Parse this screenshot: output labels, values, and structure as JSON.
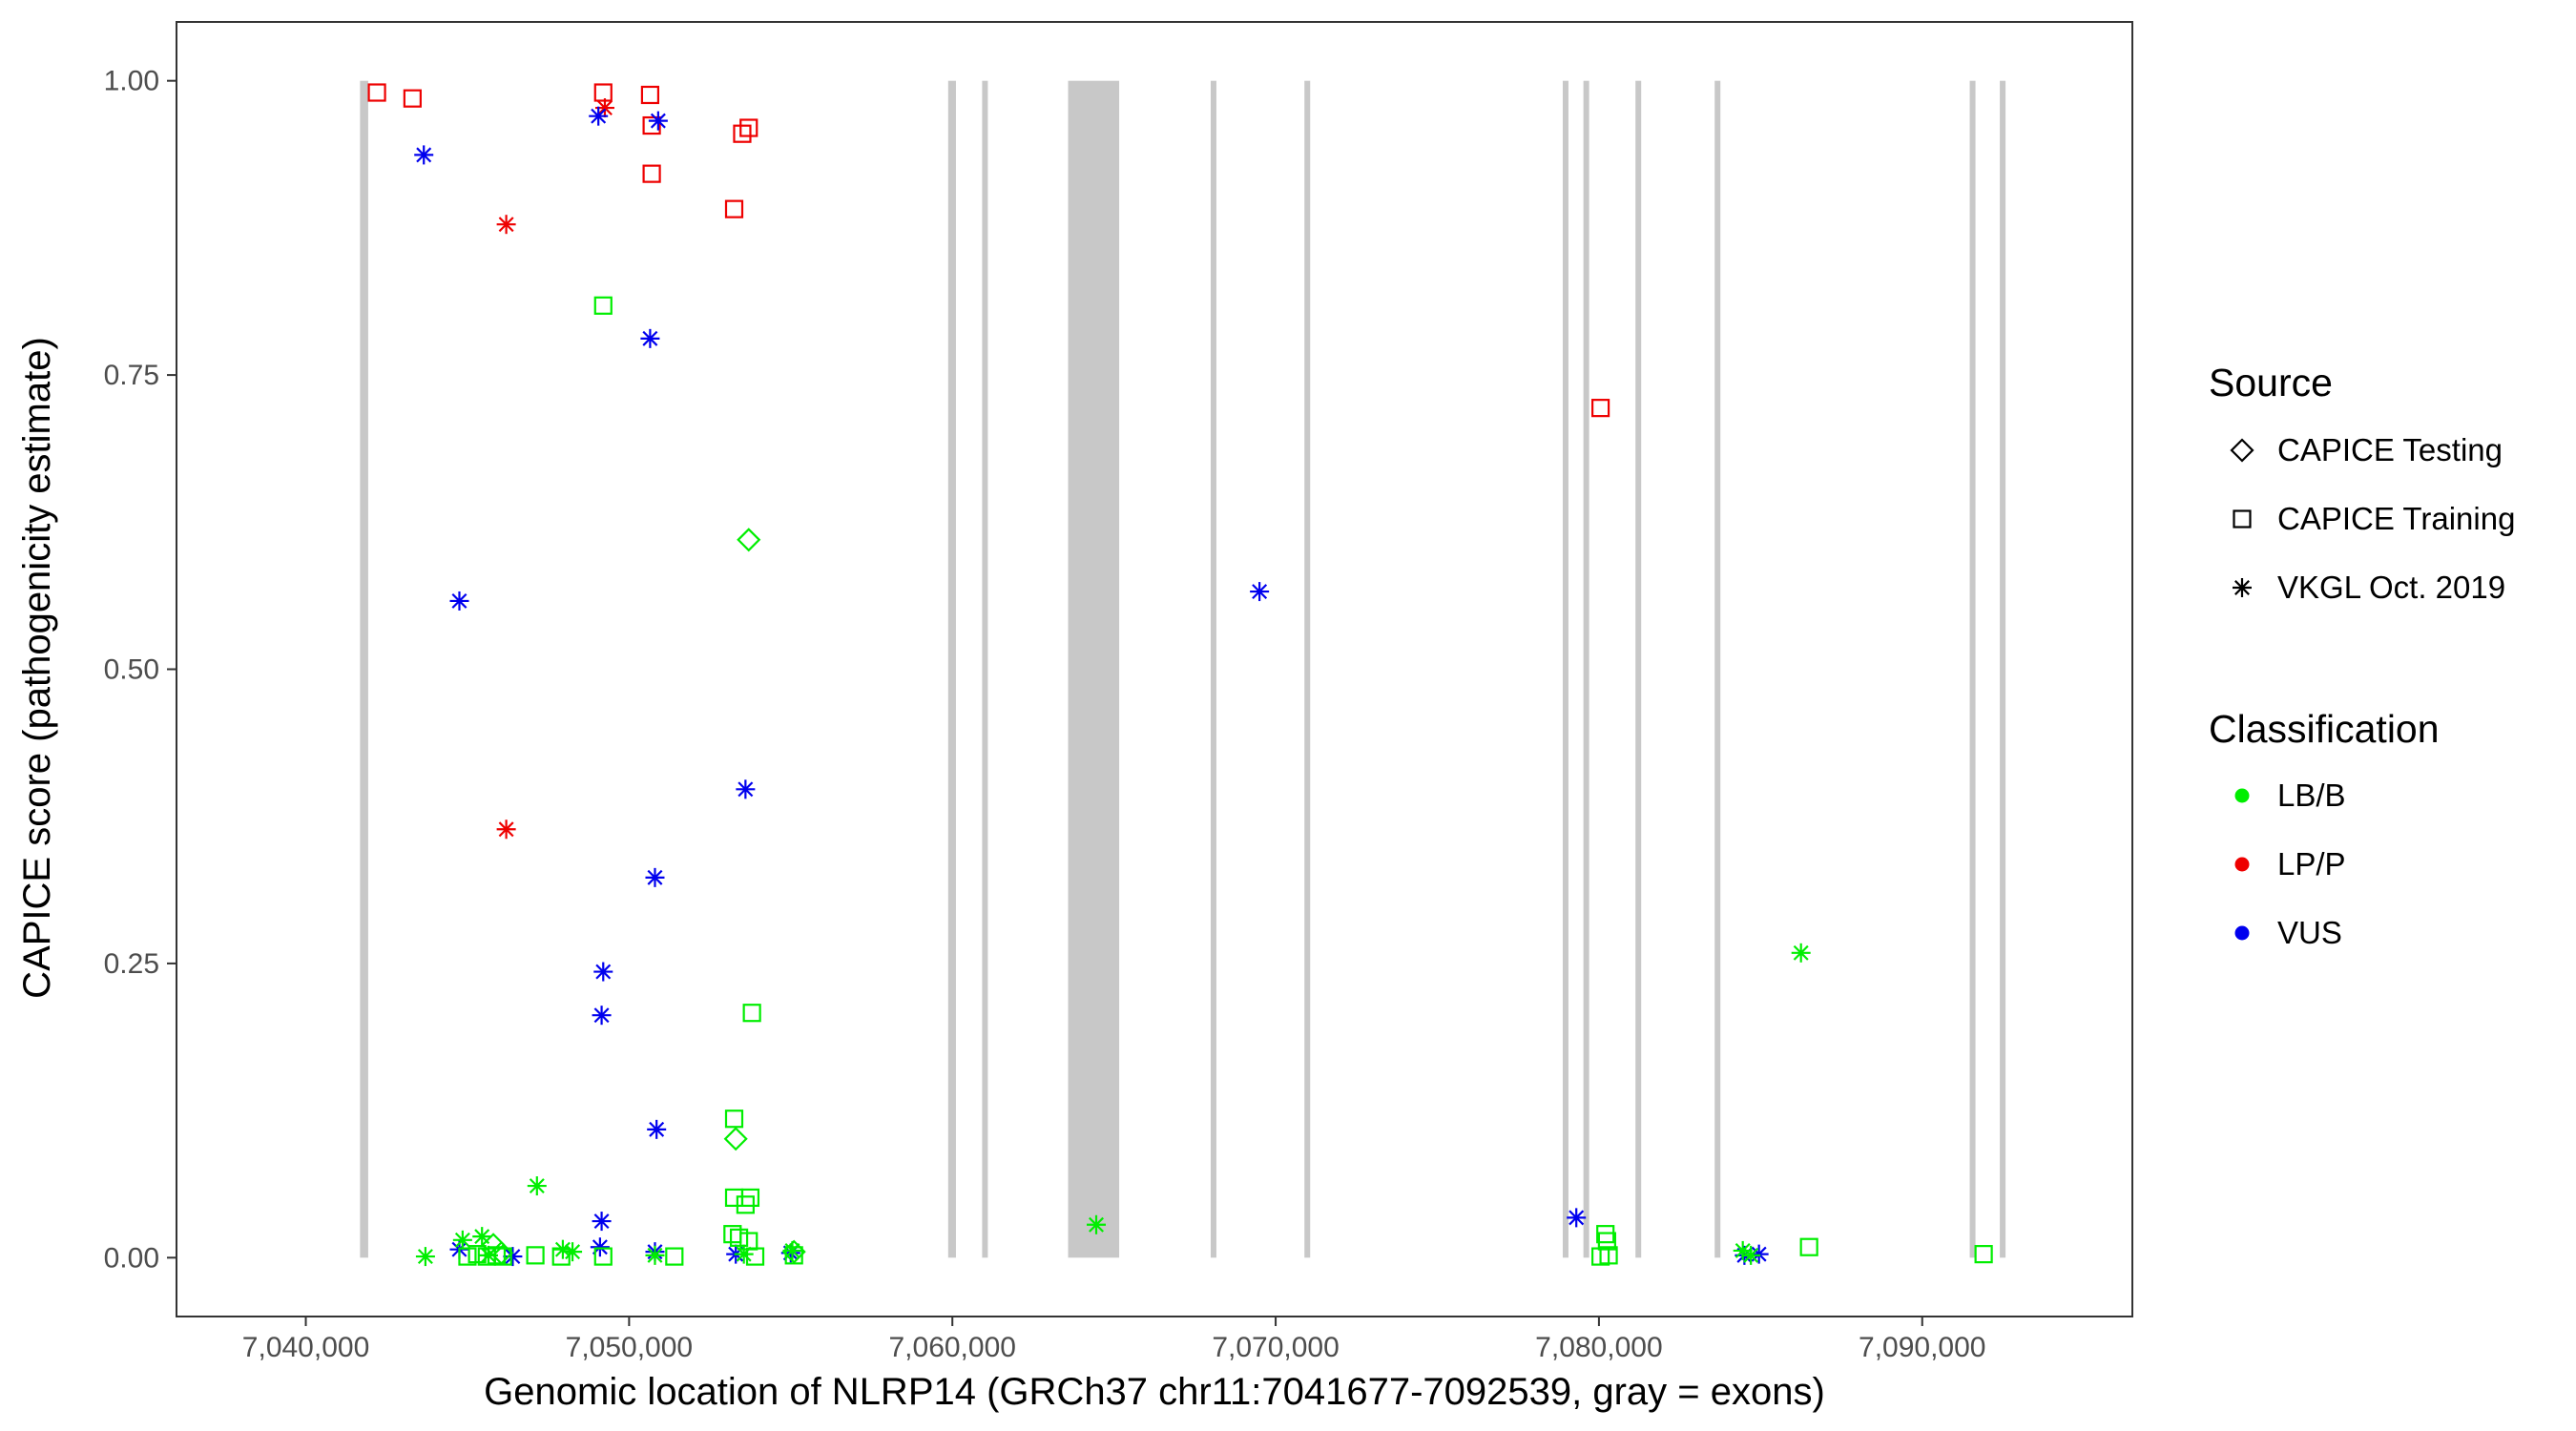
{
  "chart_data": {
    "type": "scatter",
    "title": "",
    "xlabel": "Genomic location of NLRP14 (GRCh37 chr11:7041677-7092539, gray = exons)",
    "ylabel": "CAPICE score (pathogenicity estimate)",
    "xlim": [
      7036000,
      7096500
    ],
    "ylim": [
      -0.05,
      1.05
    ],
    "x_ticks": [
      7040000,
      7050000,
      7060000,
      7070000,
      7080000,
      7090000
    ],
    "x_tick_labels": [
      "7,040,000",
      "7,050,000",
      "7,060,000",
      "7,070,000",
      "7,080,000",
      "7,090,000"
    ],
    "y_ticks": [
      0.0,
      0.25,
      0.5,
      0.75,
      1.0
    ],
    "y_tick_labels": [
      "0.00",
      "0.25",
      "0.50",
      "0.75",
      "1.00"
    ],
    "grid": false,
    "legend_position": "right",
    "exons": [
      [
        7041677,
        7041930
      ],
      [
        7059870,
        7060110
      ],
      [
        7060920,
        7061010
      ],
      [
        7063580,
        7065160
      ],
      [
        7067990,
        7068080
      ],
      [
        7070890,
        7070990
      ],
      [
        7078880,
        7078980
      ],
      [
        7079520,
        7079610
      ],
      [
        7081130,
        7081220
      ],
      [
        7083580,
        7083680
      ],
      [
        7091470,
        7091560
      ],
      [
        7092400,
        7092539
      ]
    ],
    "colors": {
      "LB/B": "#00ee00",
      "LP/P": "#ee0000",
      "VUS": "#0000ee",
      "exon": "#c8c8c8"
    },
    "legend": {
      "source_title": "Source",
      "source_items": [
        {
          "label": "CAPICE Testing",
          "shape": "diamond"
        },
        {
          "label": "CAPICE Training",
          "shape": "square"
        },
        {
          "label": "VKGL Oct. 2019",
          "shape": "asterisk"
        }
      ],
      "classification_title": "Classification",
      "classification_items": [
        {
          "label": "LB/B",
          "class": "LB/B"
        },
        {
          "label": "LP/P",
          "class": "LP/P"
        },
        {
          "label": "VUS",
          "class": "VUS"
        }
      ]
    },
    "series": [
      {
        "source": "CAPICE Training",
        "classification": "LP/P",
        "x": [
          7042200,
          7043300,
          7049200,
          7050650,
          7050700,
          7050700,
          7053250,
          7053500,
          7053700
        ],
        "y": [
          0.99,
          0.985,
          0.99,
          0.988,
          0.962,
          0.921,
          0.891,
          0.955,
          0.96
        ],
        "x2": [
          7080050
        ],
        "y2": [
          0.722
        ]
      },
      {
        "source": "VKGL Oct. 2019",
        "classification": "LP/P",
        "x": [
          7046200,
          7049250,
          7046200
        ],
        "y": [
          0.878,
          0.977,
          0.364
        ]
      },
      {
        "source": "VKGL Oct. 2019",
        "classification": "VUS",
        "x": [
          7043650,
          7049050,
          7050900,
          7050650,
          7044750,
          7069500,
          7053600,
          7050800,
          7049200,
          7049150,
          7050850,
          7079300,
          7049150,
          7044750,
          7046400,
          7049100,
          7050800,
          7053300,
          7055000,
          7084500,
          7084950
        ],
        "y": [
          0.937,
          0.97,
          0.966,
          0.781,
          0.558,
          0.566,
          0.398,
          0.323,
          0.243,
          0.206,
          0.109,
          0.034,
          0.031,
          0.007,
          0.001,
          0.009,
          0.005,
          0.003,
          0.004,
          0.002,
          0.003
        ]
      },
      {
        "source": "CAPICE Training",
        "classification": "LB/B",
        "x": [
          7049200,
          7053800,
          7053250,
          7053250,
          7053750,
          7053600,
          7053200,
          7053400,
          7053700,
          7053900,
          7045000,
          7045300,
          7045600,
          7045900,
          7046100,
          7047100,
          7047900,
          7049200,
          7051400,
          7055100,
          7080200,
          7080250,
          7080050,
          7080300,
          7086500,
          7091900
        ],
        "y": [
          0.809,
          0.208,
          0.118,
          0.051,
          0.051,
          0.045,
          0.02,
          0.017,
          0.014,
          0.001,
          0.001,
          0.003,
          0.001,
          0.002,
          0.001,
          0.002,
          0.001,
          0.001,
          0.001,
          0.002,
          0.02,
          0.014,
          0.001,
          0.002,
          0.009,
          0.003
        ]
      },
      {
        "source": "CAPICE Testing",
        "classification": "LB/B",
        "x": [
          7053700,
          7053300,
          7045800,
          7046050,
          7055100
        ],
        "y": [
          0.61,
          0.101,
          0.011,
          0.004,
          0.005
        ]
      },
      {
        "source": "VKGL Oct. 2019",
        "classification": "LB/B",
        "x": [
          7047150,
          7086250,
          7064450,
          7043700,
          7044850,
          7045450,
          7045650,
          7047950,
          7048250,
          7050800,
          7053550,
          7055050,
          7084450,
          7084700
        ],
        "y": [
          0.061,
          0.259,
          0.028,
          0.001,
          0.015,
          0.018,
          0.002,
          0.007,
          0.005,
          0.002,
          0.003,
          0.006,
          0.006,
          0.002
        ]
      }
    ]
  }
}
